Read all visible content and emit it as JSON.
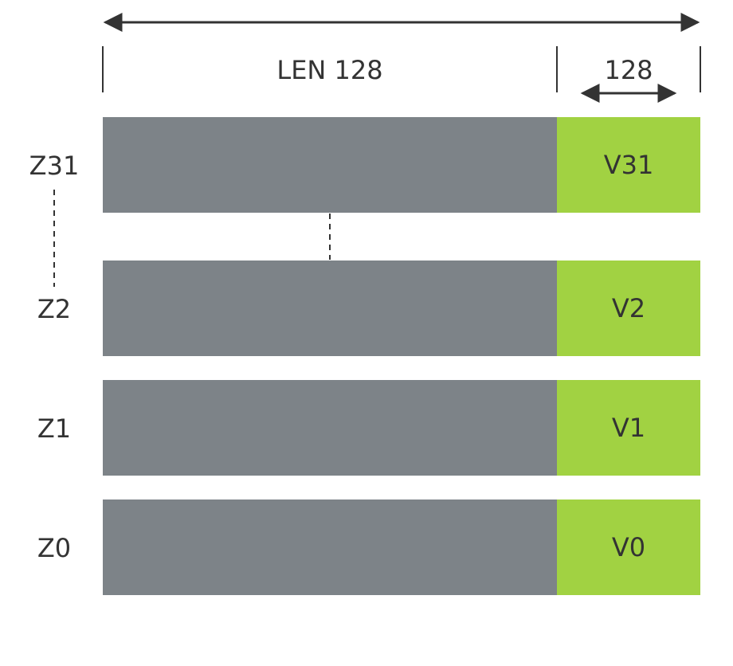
{
  "diagram": {
    "total_width_arrow": "",
    "len_label": "LEN 128",
    "segment_label": "128",
    "rows": [
      {
        "z": "Z31",
        "v": "V31"
      },
      {
        "z": "Z2",
        "v": "V2"
      },
      {
        "z": "Z1",
        "v": "V1"
      },
      {
        "z": "Z0",
        "v": "V0"
      }
    ],
    "colors": {
      "grey_bar": "#7d8388",
      "green_bar": "#a1d242",
      "line": "#333333"
    }
  }
}
